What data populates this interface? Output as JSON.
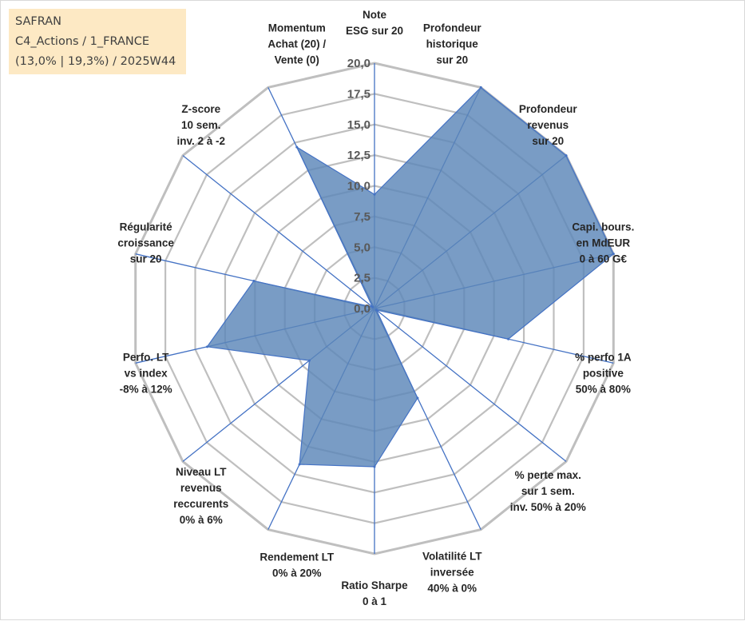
{
  "info_box": {
    "line1": "SAFRAN",
    "line2": "C4_Actions / 1_FRANCE",
    "line3": "(13,0% | 19,3%) / 2025W44"
  },
  "colors": {
    "fill": "#5b86b8",
    "fill_opacity": "0.82",
    "series_line": "#4472c4",
    "spoke": "#4472c4",
    "grid": "#bfbfbf",
    "info_bg": "#fde9c4"
  },
  "chart_data": {
    "type": "radar",
    "title": "",
    "rmin": 0,
    "rmax": 20,
    "ticks": [
      "0,0",
      "2,5",
      "5,0",
      "7,5",
      "10,0",
      "12,5",
      "15,0",
      "17,5",
      "20,0"
    ],
    "categories": [
      [
        "Note",
        "ESG sur 20"
      ],
      [
        "Profondeur",
        "historique",
        "sur 20"
      ],
      [
        "Profondeur",
        "revenus",
        "sur 20"
      ],
      [
        "Capi. bours.",
        "en MdEUR",
        "0 à 60 G€"
      ],
      [
        "% perfo 1A",
        "positive",
        "50% à 80%"
      ],
      [
        "% perte max.",
        "sur 1 sem.",
        "inv. 50% à 20%"
      ],
      [
        "Volatilité LT",
        "inversée",
        "40% à 0%"
      ],
      [
        "Ratio Sharpe",
        "0 à 1"
      ],
      [
        "Rendement LT",
        "0% à 20%"
      ],
      [
        "Niveau LT",
        "revenus",
        "reccurents",
        "0% à 6%"
      ],
      [
        "Perfo. LT",
        "vs index",
        "-8% à 12%"
      ],
      [
        "Régularité",
        "croissance",
        "sur 20"
      ],
      [
        "Z-score",
        "10 sem.",
        "inv. 2 à -2"
      ],
      [
        "Momentum",
        "Achat (20) /",
        "Vente (0)"
      ]
    ],
    "series": [
      {
        "name": "SAFRAN",
        "values": [
          9.3,
          20.0,
          20.0,
          20.0,
          11.2,
          0.2,
          8.1,
          12.9,
          14.1,
          6.8,
          14.0,
          10.1,
          0.2,
          14.6
        ]
      }
    ]
  }
}
